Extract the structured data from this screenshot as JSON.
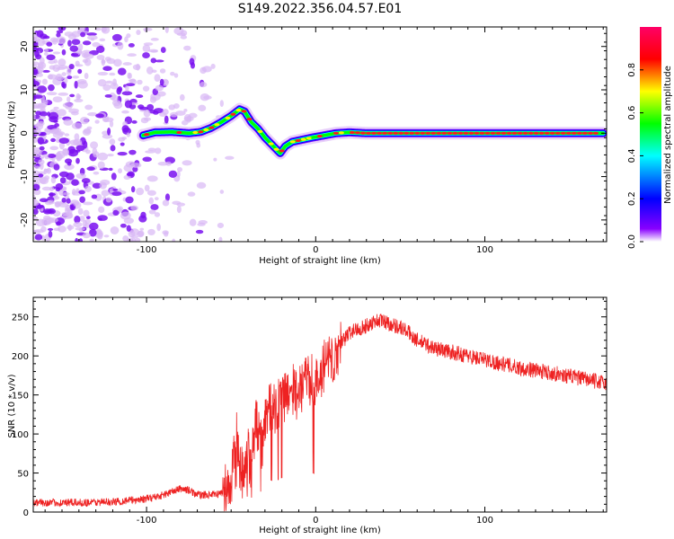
{
  "figure_title": "S149.2022.356.04.57.E01",
  "chart_data": [
    {
      "type": "heatmap",
      "xlabel": "Height of straight line (km)",
      "ylabel": "Frequency (Hz)",
      "xlim": [
        -167,
        172
      ],
      "ylim": [
        -25,
        24.5
      ],
      "xticks": [
        "-100",
        "0",
        "100"
      ],
      "xtick_values": [
        -100,
        0,
        100
      ],
      "yticks": [
        "-20",
        "-10",
        "0",
        "10",
        "20"
      ],
      "ytick_values": [
        -20,
        -10,
        0,
        10,
        20
      ],
      "colorbar": {
        "label": "Normalized spectral amplitude",
        "range": [
          0,
          1
        ],
        "ticks": [
          "0.0",
          "0.2",
          "0.4",
          "0.6",
          "0.8"
        ],
        "tick_values": [
          0,
          0.2,
          0.4,
          0.6,
          0.8
        ],
        "colormap": [
          "#ffffff",
          "#6a00ff",
          "#0000ff",
          "#00ffff",
          "#00ff00",
          "#ffff00",
          "#ff0000",
          "#ff0066"
        ]
      },
      "ridge": {
        "x": [
          -102,
          -95,
          -85,
          -75,
          -68,
          -62,
          -56,
          -50,
          -45,
          -42,
          -38,
          -34,
          -30,
          -25,
          -21,
          -18,
          -14,
          -8,
          -2,
          5,
          12,
          20,
          30,
          50,
          80,
          100,
          130,
          160,
          170
        ],
        "y": [
          -0.5,
          0.2,
          0.3,
          0,
          0.3,
          1.2,
          2.5,
          4,
          5.5,
          5,
          2.5,
          1,
          -1,
          -3,
          -4.6,
          -3,
          -2,
          -1.5,
          -1,
          -0.5,
          0,
          0.2,
          0,
          0,
          0,
          0,
          0,
          0,
          0
        ]
      },
      "noise_region_x": [
        -167,
        -65
      ]
    },
    {
      "type": "line",
      "xlabel": "Height of straight line (km)",
      "ylabel": "SNR (10 * v/v)",
      "xlim": [
        -167,
        172
      ],
      "ylim": [
        0,
        275
      ],
      "xticks": [
        "-100",
        "0",
        "100"
      ],
      "xtick_values": [
        -100,
        0,
        100
      ],
      "yticks": [
        "0",
        "50",
        "100",
        "150",
        "200",
        "250"
      ],
      "ytick_values": [
        0,
        50,
        100,
        150,
        200,
        250
      ],
      "series": [
        {
          "color": "#ee2222",
          "x": [
            -167,
            -140,
            -120,
            -100,
            -90,
            -80,
            -75,
            -70,
            -60,
            -55,
            -50,
            -47,
            -45,
            -42,
            -40,
            -38,
            -35,
            -32,
            -28,
            -25,
            -20,
            -15,
            -10,
            -5,
            0,
            5,
            10,
            15,
            20,
            25,
            30,
            35,
            40,
            45,
            50,
            55,
            60,
            70,
            80,
            90,
            100,
            120,
            140,
            160,
            172
          ],
          "y": [
            12,
            12,
            13,
            17,
            22,
            30,
            28,
            22,
            22,
            25,
            35,
            110,
            55,
            50,
            70,
            60,
            120,
            80,
            140,
            130,
            145,
            160,
            150,
            175,
            160,
            185,
            195,
            215,
            230,
            235,
            238,
            245,
            245,
            240,
            237,
            230,
            220,
            210,
            205,
            200,
            195,
            185,
            178,
            170,
            165
          ]
        }
      ]
    }
  ]
}
